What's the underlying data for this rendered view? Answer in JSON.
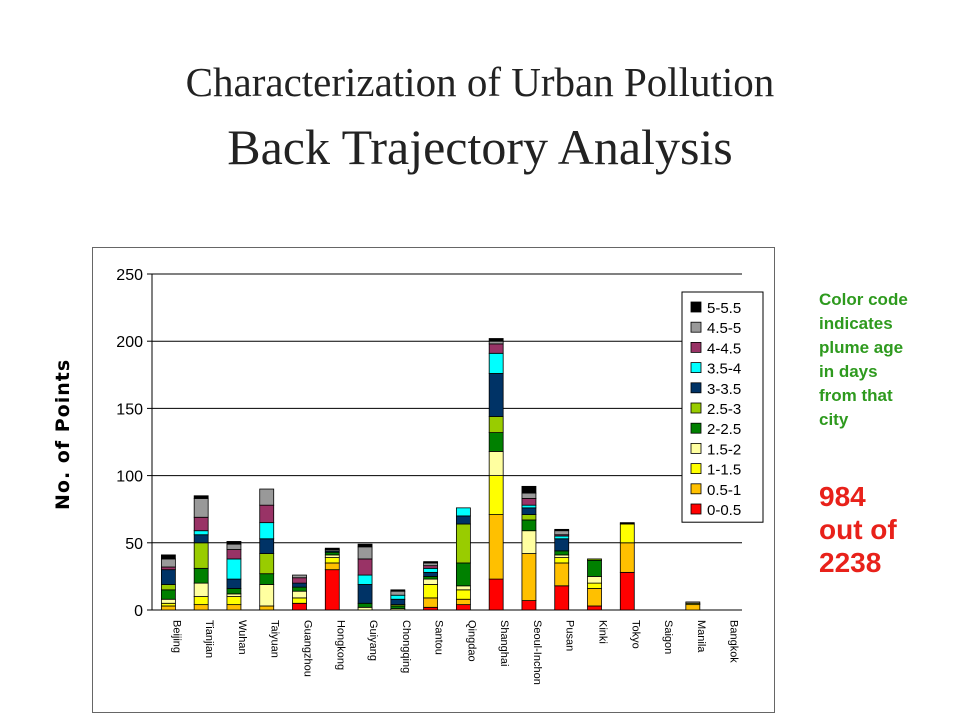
{
  "slide": {
    "title_line1": "Characterization of Urban Pollution",
    "title_line2": "Back Trajectory Analysis",
    "note_lines": [
      "Color code",
      "indicates",
      "plume age",
      "in days",
      "from that",
      "city"
    ],
    "count_lines": [
      "984",
      "out of",
      "2238"
    ]
  },
  "chart_data": {
    "type": "bar",
    "stacked": true,
    "ylabel": "No. of Points",
    "xlabel": "",
    "ylim": [
      0,
      250
    ],
    "yticks": [
      0,
      50,
      100,
      150,
      200,
      250
    ],
    "grid": "horizontal",
    "legend_position": "top-right",
    "categories": [
      "Beijing",
      "Tianjian",
      "Wuhan",
      "Taiyuan",
      "Guangzhou",
      "Hongkong",
      "Guiyang",
      "Chongqing",
      "Santou",
      "Qingdao",
      "Shanghai",
      "Seoul-Inchon",
      "Pusan",
      "Kinki",
      "Tokyo",
      "Saigon",
      "Manila",
      "Bangkok"
    ],
    "series": [
      {
        "name": "0-0.5",
        "color": "#ff0000",
        "values": [
          0,
          0,
          0,
          0,
          5,
          30,
          0,
          0,
          2,
          4,
          23,
          7,
          18,
          3,
          28,
          0,
          0,
          0
        ]
      },
      {
        "name": "0.5-1",
        "color": "#ffc000",
        "values": [
          3,
          4,
          4,
          3,
          0,
          5,
          0,
          0,
          7,
          4,
          48,
          35,
          17,
          13,
          22,
          0,
          4,
          0
        ]
      },
      {
        "name": "1-1.5",
        "color": "#ffff00",
        "values": [
          2,
          6,
          6,
          0,
          4,
          4,
          0,
          0,
          10,
          7,
          29,
          0,
          4,
          4,
          14,
          0,
          1,
          0
        ]
      },
      {
        "name": "1.5-2",
        "color": "#ffffa0",
        "values": [
          3,
          10,
          2,
          16,
          5,
          2,
          2,
          1,
          4,
          3,
          18,
          17,
          2,
          5,
          0,
          0,
          0,
          0
        ]
      },
      {
        "name": "2-2.5",
        "color": "#008000",
        "values": [
          7,
          11,
          4,
          8,
          3,
          2,
          3,
          2,
          2,
          17,
          14,
          8,
          3,
          12,
          0,
          0,
          0,
          0
        ]
      },
      {
        "name": "2.5-3",
        "color": "#99cc00",
        "values": [
          4,
          19,
          0,
          15,
          0,
          0,
          0,
          1,
          0,
          29,
          12,
          4,
          0,
          1,
          0,
          0,
          0,
          0
        ]
      },
      {
        "name": "3-3.5",
        "color": "#003366",
        "values": [
          11,
          6,
          7,
          11,
          3,
          1,
          14,
          4,
          3,
          6,
          32,
          5,
          9,
          0,
          0,
          0,
          0,
          0
        ]
      },
      {
        "name": "3.5-4",
        "color": "#00ffff",
        "values": [
          0,
          3,
          15,
          12,
          0,
          0,
          7,
          3,
          3,
          6,
          15,
          2,
          2,
          0,
          0,
          0,
          0,
          0
        ]
      },
      {
        "name": "4-4.5",
        "color": "#993366",
        "values": [
          2,
          10,
          7,
          13,
          4,
          0,
          12,
          0,
          2,
          0,
          7,
          5,
          1,
          0,
          0,
          0,
          0,
          0
        ]
      },
      {
        "name": "4.5-5",
        "color": "#999999",
        "values": [
          6,
          14,
          4,
          12,
          2,
          1,
          9,
          3,
          2,
          0,
          2,
          4,
          3,
          0,
          0,
          0,
          1,
          0
        ]
      },
      {
        "name": "5-5.5",
        "color": "#000000",
        "values": [
          3,
          2,
          2,
          0,
          0,
          1,
          2,
          1,
          1,
          0,
          2,
          5,
          1,
          0,
          1,
          0,
          0,
          0
        ]
      }
    ]
  }
}
